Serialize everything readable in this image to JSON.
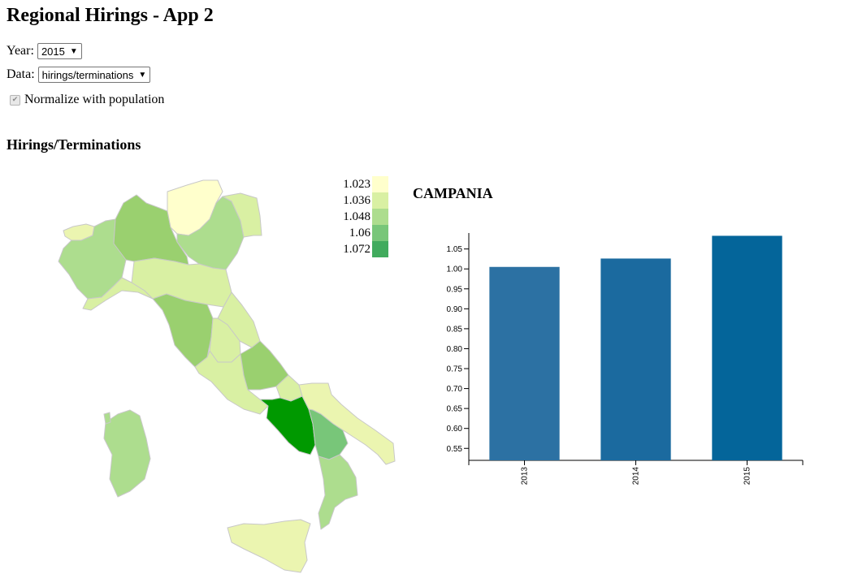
{
  "page": {
    "title": "Regional Hirings - App 2"
  },
  "controls": {
    "year_label": "Year:",
    "year_value": "2015",
    "data_label": "Data:",
    "data_value": "hirings/terminations",
    "normalize_label": "Normalize with population",
    "normalize_checked": true
  },
  "section": {
    "title": "Hirings/Terminations"
  },
  "legend": {
    "items": [
      {
        "label": "1.023",
        "color": "#ffffcc"
      },
      {
        "label": "1.036",
        "color": "#d9f0a3"
      },
      {
        "label": "1.048",
        "color": "#addd8e"
      },
      {
        "label": "1.06",
        "color": "#78c679"
      },
      {
        "label": "1.072",
        "color": "#41ab5d"
      }
    ]
  },
  "map": {
    "border_color": "#c8c8c8",
    "highlight_color": "#009900",
    "selected_region": "CAMPANIA"
  },
  "detail": {
    "region_title": "CAMPANIA"
  },
  "chart_data": {
    "type": "bar",
    "title": "CAMPANIA",
    "categories": [
      "2013",
      "2014",
      "2015"
    ],
    "values": [
      1.005,
      1.026,
      1.083
    ],
    "colors": [
      "#2c71a3",
      "#1b6a9f",
      "#04659a"
    ],
    "ylim": [
      0.52,
      1.09
    ],
    "yticks": [
      "0.55",
      "0.60",
      "0.65",
      "0.70",
      "0.75",
      "0.80",
      "0.85",
      "0.90",
      "0.95",
      "1.00",
      "1.05"
    ],
    "xlabel": "",
    "ylabel": ""
  }
}
